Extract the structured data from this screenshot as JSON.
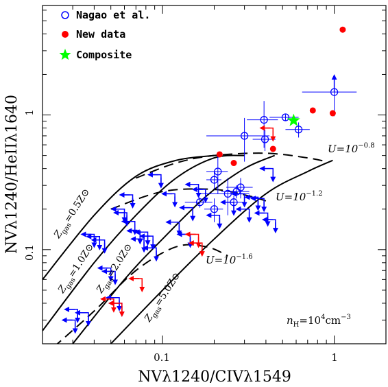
{
  "chart_data": {
    "type": "scatter",
    "x_scale": "log",
    "y_scale": "log",
    "xlim": [
      0.02,
      2.0
    ],
    "ylim": [
      0.02,
      6.5
    ],
    "xlabel": "NVλ1240/CIVλ1549",
    "ylabel": "NVλ1240/HeIIλ1640",
    "x_ticks": [
      {
        "value": 0.1,
        "label": "0.1"
      },
      {
        "value": 1,
        "label": "1"
      }
    ],
    "y_ticks": [
      {
        "value": 0.1,
        "label": "0.1"
      },
      {
        "value": 1,
        "label": "1"
      }
    ],
    "legend": {
      "position": "top-left",
      "entries": [
        {
          "label": "Nagao et al.",
          "marker": "open-circle",
          "color": "#0000ff"
        },
        {
          "label": "New data",
          "marker": "filled-circle",
          "color": "#ff0000"
        },
        {
          "label": "Composite",
          "marker": "star",
          "color": "#00ff00"
        }
      ]
    },
    "series": [
      {
        "name": "Nagao et al.",
        "marker": "open-circle-errorbar",
        "color": "#0000ff",
        "points": [
          {
            "x": 0.165,
            "y": 0.225,
            "xerr": 0.03,
            "yerr": 0.02
          },
          {
            "x": 0.2,
            "y": 0.33,
            "xerr": 0.02,
            "yerr": 0.05
          },
          {
            "x": 0.21,
            "y": 0.38,
            "xerr": 0.03,
            "yerr": 0.12
          },
          {
            "x": 0.2,
            "y": 0.2,
            "xerr": 0.025,
            "yerr": 0.04
          },
          {
            "x": 0.24,
            "y": 0.26,
            "xerr": 0.08,
            "yerr": 0.08
          },
          {
            "x": 0.26,
            "y": 0.225,
            "xerr": 0.04,
            "yerr": 0.025
          },
          {
            "x": 0.27,
            "y": 0.27,
            "xerr": 0.05,
            "yerr": 0.03
          },
          {
            "x": 0.285,
            "y": 0.29,
            "xerr": 0.05,
            "yerr": 0.05
          },
          {
            "x": 0.3,
            "y": 0.7,
            "xerr": 0.12,
            "yerr": 0.25
          },
          {
            "x": 0.39,
            "y": 0.92,
            "xerr": 0.08,
            "yerr": 0.35
          },
          {
            "x": 0.395,
            "y": 0.66,
            "xerr": 0.06,
            "yerr": 0.12
          },
          {
            "x": 0.52,
            "y": 0.96,
            "xerr": 0.1,
            "yerr": 0.05
          },
          {
            "x": 0.62,
            "y": 0.78,
            "xerr": 0.1,
            "yerr": 0.1
          },
          {
            "x": 1.0,
            "y": 1.48,
            "xerr": 0.35,
            "yerr": 0.5
          }
        ]
      },
      {
        "name": "New data",
        "marker": "filled-circle",
        "color": "#ff0000",
        "points": [
          {
            "x": 0.215,
            "y": 0.51
          },
          {
            "x": 0.26,
            "y": 0.44
          },
          {
            "x": 0.44,
            "y": 0.56
          },
          {
            "x": 0.75,
            "y": 1.08
          },
          {
            "x": 0.98,
            "y": 1.03
          },
          {
            "x": 1.12,
            "y": 4.3
          }
        ]
      },
      {
        "name": "Composite",
        "marker": "star",
        "color": "#00ff00",
        "points": [
          {
            "x": 0.58,
            "y": 0.91
          }
        ]
      },
      {
        "name": "upper limits (blue)",
        "marker": "limit-arrow-left-down",
        "color": "#0000ff",
        "points": [
          {
            "x": 0.032,
            "y": 0.036
          },
          {
            "x": 0.031,
            "y": 0.03
          },
          {
            "x": 0.037,
            "y": 0.034
          },
          {
            "x": 0.04,
            "y": 0.13
          },
          {
            "x": 0.043,
            "y": 0.125
          },
          {
            "x": 0.046,
            "y": 0.118
          },
          {
            "x": 0.05,
            "y": 0.073
          },
          {
            "x": 0.053,
            "y": 0.069
          },
          {
            "x": 0.056,
            "y": 0.044
          },
          {
            "x": 0.058,
            "y": 0.04
          },
          {
            "x": 0.06,
            "y": 0.2
          },
          {
            "x": 0.062,
            "y": 0.188
          },
          {
            "x": 0.067,
            "y": 0.255
          },
          {
            "x": 0.069,
            "y": 0.162
          },
          {
            "x": 0.074,
            "y": 0.138
          },
          {
            "x": 0.078,
            "y": 0.12
          },
          {
            "x": 0.082,
            "y": 0.135
          },
          {
            "x": 0.088,
            "y": 0.126
          },
          {
            "x": 0.092,
            "y": 0.103
          },
          {
            "x": 0.098,
            "y": 0.36
          },
          {
            "x": 0.118,
            "y": 0.26
          },
          {
            "x": 0.125,
            "y": 0.16
          },
          {
            "x": 0.145,
            "y": 0.13
          },
          {
            "x": 0.15,
            "y": 0.205
          },
          {
            "x": 0.162,
            "y": 0.305
          },
          {
            "x": 0.178,
            "y": 0.28
          },
          {
            "x": 0.215,
            "y": 0.18
          },
          {
            "x": 0.26,
            "y": 0.225
          },
          {
            "x": 0.3,
            "y": 0.26
          },
          {
            "x": 0.32,
            "y": 0.2
          },
          {
            "x": 0.36,
            "y": 0.245
          },
          {
            "x": 0.39,
            "y": 0.24
          },
          {
            "x": 0.41,
            "y": 0.187
          },
          {
            "x": 0.44,
            "y": 0.4
          },
          {
            "x": 0.455,
            "y": 0.167
          }
        ]
      },
      {
        "name": "upper limits (red)",
        "marker": "limit-arrow-left-down",
        "color": "#ff0000",
        "points": [
          {
            "x": 0.052,
            "y": 0.043
          },
          {
            "x": 0.058,
            "y": 0.04
          },
          {
            "x": 0.076,
            "y": 0.061
          },
          {
            "x": 0.162,
            "y": 0.13
          },
          {
            "x": 0.17,
            "y": 0.112
          },
          {
            "x": 0.44,
            "y": 0.8
          }
        ]
      },
      {
        "name": "upper limit arrow (up)",
        "marker": "limit-arrow-up",
        "color": "#0000ff",
        "points": [
          {
            "x": 1.0,
            "y": 1.48
          }
        ]
      }
    ],
    "model_curves": {
      "constant_Z": [
        {
          "label": "Z gas =0.5Z⊙",
          "points": [
            [
              0.02,
              0.06
            ],
            [
              0.04,
              0.18
            ],
            [
              0.07,
              0.35
            ],
            [
              0.12,
              0.46
            ],
            [
              0.2,
              0.5
            ]
          ]
        },
        {
          "label": "Z gas =1.0Z⊙",
          "points": [
            [
              0.02,
              0.025
            ],
            [
              0.04,
              0.08
            ],
            [
              0.07,
              0.18
            ],
            [
              0.12,
              0.34
            ],
            [
              0.2,
              0.48
            ],
            [
              0.3,
              0.5
            ]
          ]
        },
        {
          "label": "Z gas =2.0Z⊙",
          "points": [
            [
              0.03,
              0.02
            ],
            [
              0.06,
              0.06
            ],
            [
              0.1,
              0.12
            ],
            [
              0.18,
              0.25
            ],
            [
              0.3,
              0.4
            ],
            [
              0.45,
              0.5
            ]
          ]
        },
        {
          "label": "Z gas =5.0Z⊙",
          "points": [
            [
              0.05,
              0.02
            ],
            [
              0.1,
              0.05
            ],
            [
              0.2,
              0.12
            ],
            [
              0.4,
              0.26
            ],
            [
              0.7,
              0.38
            ],
            [
              0.98,
              0.46
            ]
          ]
        }
      ],
      "constant_U": [
        {
          "label": "U=10^-0.8",
          "points": [
            [
              0.07,
              0.34
            ],
            [
              0.12,
              0.44
            ],
            [
              0.2,
              0.5
            ],
            [
              0.4,
              0.52
            ],
            [
              0.7,
              0.48
            ],
            [
              0.9,
              0.45
            ]
          ]
        },
        {
          "label": "U=10^-1.2",
          "points": [
            [
              0.05,
              0.2
            ],
            [
              0.1,
              0.27
            ],
            [
              0.2,
              0.28
            ],
            [
              0.32,
              0.25
            ],
            [
              0.4,
              0.23
            ]
          ]
        },
        {
          "label": "U=10^-1.6",
          "points": [
            [
              0.02,
              0.016
            ],
            [
              0.04,
              0.035
            ],
            [
              0.07,
              0.07
            ],
            [
              0.12,
              0.105
            ],
            [
              0.18,
              0.105
            ],
            [
              0.24,
              0.09
            ]
          ]
        }
      ]
    },
    "annotations": [
      {
        "text": "n_H=10^4 cm^-3"
      },
      {
        "text": "U=10^-0.8"
      },
      {
        "text": "U=10^-1.2"
      },
      {
        "text": "U=10^-1.6"
      }
    ]
  },
  "labels": {
    "xlabel": "NVλ1240/CIVλ1549",
    "ylabel": "NVλ1240/HeIIλ1640",
    "legend_nagao": "Nagao et al.",
    "legend_new": "New data",
    "legend_composite": "Composite",
    "x_tick_01": "0.1",
    "x_tick_1": "1",
    "y_tick_01": "0.1",
    "y_tick_1": "1",
    "z05_prefix": "Z",
    "z05_sub": "gas",
    "z05_val": "=0.5Z⊙",
    "z10_prefix": "Z",
    "z10_sub": "gas",
    "z10_val": "=1.0Z⊙",
    "z20_prefix": "Z",
    "z20_sub": "gas",
    "z20_val": "=2.0Z⊙",
    "z50_prefix": "Z",
    "z50_sub": "gas",
    "z50_val": "=5.0Z⊙",
    "u08_base": "U=10",
    "u08_exp": "−0.8",
    "u12_base": "U=10",
    "u12_exp": "−1.2",
    "u16_base": "U=10",
    "u16_exp": "−1.6",
    "nh_n": "n",
    "nh_sub": "H",
    "nh_eq": "=10",
    "nh_exp": "4",
    "nh_unit": "cm",
    "nh_unit_exp": "−3"
  }
}
